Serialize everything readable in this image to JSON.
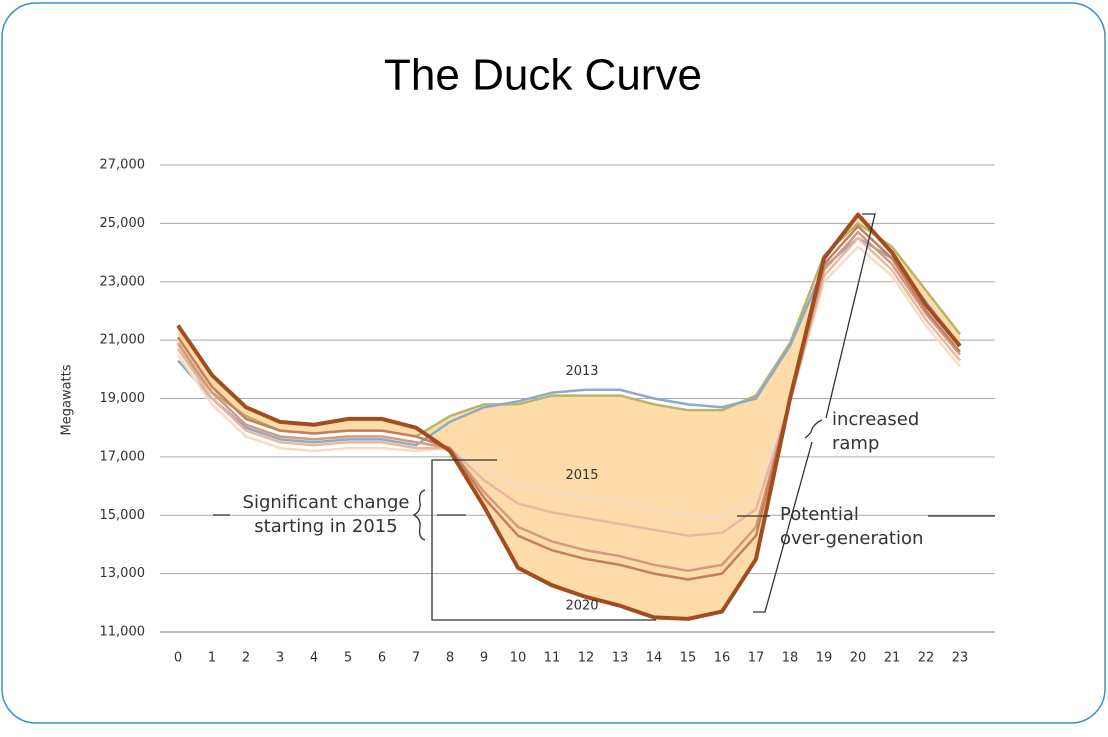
{
  "chart_data": {
    "type": "line",
    "title": "The Duck Curve",
    "y_label": "Megawatts",
    "categories": [
      "0",
      "1",
      "2",
      "3",
      "4",
      "5",
      "6",
      "7",
      "8",
      "9",
      "10",
      "11",
      "12",
      "13",
      "14",
      "15",
      "16",
      "17",
      "18",
      "19",
      "20",
      "21",
      "22",
      "23"
    ],
    "ylim": [
      11000,
      27000
    ],
    "yticks": [
      {
        "value": 11000,
        "label": "11,000"
      },
      {
        "value": 13000,
        "label": "13,000"
      },
      {
        "value": 15000,
        "label": "15,000"
      },
      {
        "value": 17000,
        "label": "17,000"
      },
      {
        "value": 19000,
        "label": "19,000"
      },
      {
        "value": 21000,
        "label": "21,000"
      },
      {
        "value": 23000,
        "label": "23,000"
      },
      {
        "value": 25000,
        "label": "25,000"
      },
      {
        "value": 27000,
        "label": "27,000"
      }
    ],
    "grid": true,
    "area_color": "#fddcaa",
    "series": [
      {
        "color": "#b8b56a",
        "values": [
          20700,
          19200,
          18400,
          17900,
          17800,
          17900,
          17900,
          17700,
          18400,
          18800,
          18800,
          19100,
          19100,
          19100,
          18800,
          18600,
          18600,
          19100,
          20900,
          23900,
          25000,
          24200,
          22700,
          21200
        ]
      },
      {
        "name": "2013",
        "color": "#8eaac6",
        "values": [
          20300,
          19000,
          18000,
          17600,
          17500,
          17600,
          17600,
          17400,
          18200,
          18700,
          18900,
          19200,
          19300,
          19300,
          19000,
          18800,
          18700,
          19000,
          20800,
          23500,
          24500,
          23800,
          22300,
          20800
        ]
      },
      {
        "name": "2015",
        "color": "#f6dcc4",
        "values": [
          20500,
          18800,
          17700,
          17300,
          17200,
          17300,
          17300,
          17200,
          17300,
          16600,
          16000,
          15800,
          15600,
          15500,
          15200,
          15000,
          14900,
          15700,
          18900,
          23000,
          24200,
          23200,
          21500,
          20100
        ]
      },
      {
        "color": "#e8b9a0",
        "values": [
          20700,
          19000,
          17900,
          17500,
          17400,
          17500,
          17500,
          17300,
          17300,
          16200,
          15400,
          15100,
          14900,
          14700,
          14500,
          14300,
          14400,
          15200,
          18900,
          23200,
          24500,
          23400,
          21700,
          20300
        ]
      },
      {
        "color": "#d49a80",
        "values": [
          20900,
          19200,
          18100,
          17700,
          17600,
          17700,
          17700,
          17500,
          17300,
          15800,
          14600,
          14100,
          13800,
          13600,
          13300,
          13100,
          13300,
          14600,
          18900,
          23400,
          24700,
          23600,
          21900,
          20500
        ]
      },
      {
        "color": "#c47f5e",
        "values": [
          21100,
          19400,
          18300,
          17900,
          17800,
          17900,
          17900,
          17700,
          17300,
          15600,
          14300,
          13800,
          13500,
          13300,
          13000,
          12800,
          13000,
          14300,
          19000,
          23600,
          24900,
          23800,
          22000,
          20600
        ]
      },
      {
        "name": "2020",
        "color": "#a24d1e",
        "values": [
          21500,
          19800,
          18700,
          18200,
          18100,
          18300,
          18300,
          18000,
          17200,
          15300,
          13200,
          12600,
          12200,
          11900,
          11500,
          11450,
          11700,
          13500,
          19000,
          23800,
          25300,
          24000,
          22200,
          20800
        ]
      }
    ],
    "annotations": [
      {
        "lines": [
          "Significant change",
          "starting in 2015"
        ]
      },
      {
        "lines": [
          "increased",
          "ramp"
        ]
      },
      {
        "lines": [
          "Potential",
          "over-generation"
        ]
      }
    ]
  }
}
